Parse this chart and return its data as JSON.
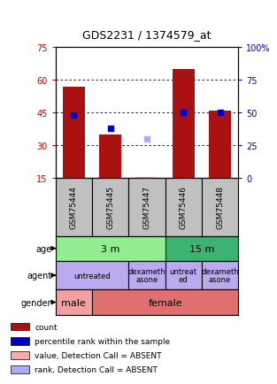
{
  "title": "GDS2231 / 1374579_at",
  "samples": [
    "GSM75444",
    "GSM75445",
    "GSM75447",
    "GSM75446",
    "GSM75448"
  ],
  "count_values": [
    57,
    35,
    15.5,
    65,
    46
  ],
  "count_absent": [
    false,
    false,
    true,
    false,
    false
  ],
  "percentile_values": [
    44,
    38,
    null,
    45,
    45
  ],
  "percentile_absent": [
    false,
    false,
    null,
    false,
    false
  ],
  "rank_absent_value": 33,
  "rank_absent_sample_idx": 2,
  "ylim_left": [
    15,
    75
  ],
  "ylim_right": [
    0,
    100
  ],
  "yticks_left": [
    15,
    30,
    45,
    60,
    75
  ],
  "yticks_right": [
    0,
    25,
    50,
    75,
    100
  ],
  "ytick_labels_left": [
    "15",
    "30",
    "45",
    "60",
    "75"
  ],
  "ytick_labels_right": [
    "0",
    "25",
    "50",
    "75",
    "100%"
  ],
  "bar_color": "#AA1111",
  "bar_absent_color": "#FFAAAA",
  "percentile_color": "#0000CC",
  "percentile_absent_color": "#AAAAFF",
  "age_color": "#90EE90",
  "age_color2": "#3CB371",
  "agent_color": "#BBAAEE",
  "gender_male_color": "#F4A0A0",
  "gender_female_color": "#E07070",
  "sample_box_color": "#C0C0C0",
  "legend_items": [
    {
      "color": "#AA1111",
      "label": "count"
    },
    {
      "color": "#0000CC",
      "label": "percentile rank within the sample"
    },
    {
      "color": "#FFAAAA",
      "label": "value, Detection Call = ABSENT"
    },
    {
      "color": "#AAAAFF",
      "label": "rank, Detection Call = ABSENT"
    }
  ],
  "background_color": "#FFFFFF"
}
